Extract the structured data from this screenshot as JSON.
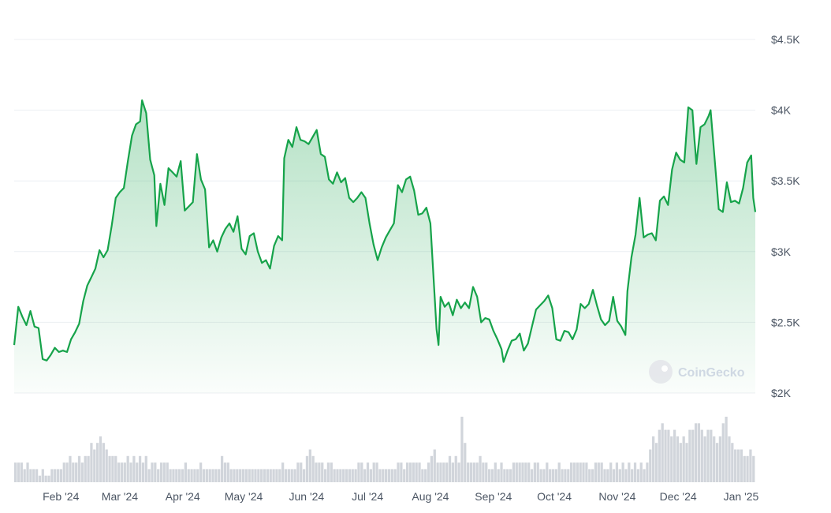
{
  "watermark": {
    "text": "CoinGecko",
    "icon": "gecko-logo-icon"
  },
  "colors": {
    "line": "#16a34a",
    "area_top": "#16a34a",
    "volume": "#d1d5db",
    "grid": "#eceff3",
    "label": "#4b5563"
  },
  "chart_data": {
    "type": "area",
    "title": "",
    "xlabel": "",
    "ylabel": "",
    "grid": true,
    "ylim": [
      2000,
      4500
    ],
    "yticks": [
      {
        "value": 4500,
        "label": "$4.5K"
      },
      {
        "value": 4000,
        "label": "$4K"
      },
      {
        "value": 3500,
        "label": "$3.5K"
      },
      {
        "value": 3000,
        "label": "$3K"
      },
      {
        "value": 2500,
        "label": "$2.5K"
      },
      {
        "value": 2000,
        "label": "$2K"
      }
    ],
    "xticks": [
      {
        "date": "2024-02-01",
        "label": "Feb '24"
      },
      {
        "date": "2024-03-01",
        "label": "Mar '24"
      },
      {
        "date": "2024-04-01",
        "label": "Apr '24"
      },
      {
        "date": "2024-05-01",
        "label": "May '24"
      },
      {
        "date": "2024-06-01",
        "label": "Jun '24"
      },
      {
        "date": "2024-07-01",
        "label": "Jul '24"
      },
      {
        "date": "2024-08-01",
        "label": "Aug '24"
      },
      {
        "date": "2024-09-01",
        "label": "Sep '24"
      },
      {
        "date": "2024-10-01",
        "label": "Oct '24"
      },
      {
        "date": "2024-11-01",
        "label": "Nov '24"
      },
      {
        "date": "2024-12-01",
        "label": "Dec '24"
      },
      {
        "date": "2025-01-01",
        "label": "Jan '25"
      }
    ],
    "series": [
      {
        "values": [
          {
            "x": "2024-01-09",
            "y": 2340
          },
          {
            "x": "2024-01-11",
            "y": 2610
          },
          {
            "x": "2024-01-13",
            "y": 2540
          },
          {
            "x": "2024-01-15",
            "y": 2480
          },
          {
            "x": "2024-01-17",
            "y": 2580
          },
          {
            "x": "2024-01-19",
            "y": 2470
          },
          {
            "x": "2024-01-21",
            "y": 2460
          },
          {
            "x": "2024-01-23",
            "y": 2240
          },
          {
            "x": "2024-01-25",
            "y": 2230
          },
          {
            "x": "2024-01-27",
            "y": 2270
          },
          {
            "x": "2024-01-29",
            "y": 2320
          },
          {
            "x": "2024-01-31",
            "y": 2290
          },
          {
            "x": "2024-02-02",
            "y": 2300
          },
          {
            "x": "2024-02-04",
            "y": 2290
          },
          {
            "x": "2024-02-06",
            "y": 2380
          },
          {
            "x": "2024-02-08",
            "y": 2430
          },
          {
            "x": "2024-02-10",
            "y": 2490
          },
          {
            "x": "2024-02-12",
            "y": 2650
          },
          {
            "x": "2024-02-14",
            "y": 2760
          },
          {
            "x": "2024-02-16",
            "y": 2820
          },
          {
            "x": "2024-02-18",
            "y": 2880
          },
          {
            "x": "2024-02-20",
            "y": 3010
          },
          {
            "x": "2024-02-22",
            "y": 2960
          },
          {
            "x": "2024-02-24",
            "y": 3010
          },
          {
            "x": "2024-02-26",
            "y": 3180
          },
          {
            "x": "2024-02-28",
            "y": 3380
          },
          {
            "x": "2024-03-01",
            "y": 3420
          },
          {
            "x": "2024-03-03",
            "y": 3450
          },
          {
            "x": "2024-03-05",
            "y": 3640
          },
          {
            "x": "2024-03-07",
            "y": 3820
          },
          {
            "x": "2024-03-09",
            "y": 3900
          },
          {
            "x": "2024-03-11",
            "y": 3920
          },
          {
            "x": "2024-03-12",
            "y": 4070
          },
          {
            "x": "2024-03-14",
            "y": 3980
          },
          {
            "x": "2024-03-16",
            "y": 3650
          },
          {
            "x": "2024-03-18",
            "y": 3540
          },
          {
            "x": "2024-03-19",
            "y": 3180
          },
          {
            "x": "2024-03-21",
            "y": 3480
          },
          {
            "x": "2024-03-23",
            "y": 3330
          },
          {
            "x": "2024-03-25",
            "y": 3590
          },
          {
            "x": "2024-03-27",
            "y": 3560
          },
          {
            "x": "2024-03-29",
            "y": 3530
          },
          {
            "x": "2024-03-31",
            "y": 3640
          },
          {
            "x": "2024-04-02",
            "y": 3290
          },
          {
            "x": "2024-04-04",
            "y": 3320
          },
          {
            "x": "2024-04-06",
            "y": 3350
          },
          {
            "x": "2024-04-08",
            "y": 3690
          },
          {
            "x": "2024-04-10",
            "y": 3510
          },
          {
            "x": "2024-04-12",
            "y": 3440
          },
          {
            "x": "2024-04-14",
            "y": 3030
          },
          {
            "x": "2024-04-16",
            "y": 3080
          },
          {
            "x": "2024-04-18",
            "y": 3000
          },
          {
            "x": "2024-04-20",
            "y": 3100
          },
          {
            "x": "2024-04-22",
            "y": 3160
          },
          {
            "x": "2024-04-24",
            "y": 3200
          },
          {
            "x": "2024-04-26",
            "y": 3140
          },
          {
            "x": "2024-04-28",
            "y": 3250
          },
          {
            "x": "2024-04-30",
            "y": 3020
          },
          {
            "x": "2024-05-02",
            "y": 2980
          },
          {
            "x": "2024-05-04",
            "y": 3110
          },
          {
            "x": "2024-05-06",
            "y": 3130
          },
          {
            "x": "2024-05-08",
            "y": 3000
          },
          {
            "x": "2024-05-10",
            "y": 2920
          },
          {
            "x": "2024-05-12",
            "y": 2940
          },
          {
            "x": "2024-05-14",
            "y": 2880
          },
          {
            "x": "2024-05-16",
            "y": 3040
          },
          {
            "x": "2024-05-18",
            "y": 3110
          },
          {
            "x": "2024-05-20",
            "y": 3080
          },
          {
            "x": "2024-05-21",
            "y": 3660
          },
          {
            "x": "2024-05-23",
            "y": 3790
          },
          {
            "x": "2024-05-25",
            "y": 3740
          },
          {
            "x": "2024-05-27",
            "y": 3880
          },
          {
            "x": "2024-05-29",
            "y": 3790
          },
          {
            "x": "2024-05-31",
            "y": 3780
          },
          {
            "x": "2024-06-02",
            "y": 3760
          },
          {
            "x": "2024-06-04",
            "y": 3810
          },
          {
            "x": "2024-06-06",
            "y": 3860
          },
          {
            "x": "2024-06-08",
            "y": 3690
          },
          {
            "x": "2024-06-10",
            "y": 3670
          },
          {
            "x": "2024-06-12",
            "y": 3510
          },
          {
            "x": "2024-06-14",
            "y": 3480
          },
          {
            "x": "2024-06-16",
            "y": 3560
          },
          {
            "x": "2024-06-18",
            "y": 3490
          },
          {
            "x": "2024-06-20",
            "y": 3520
          },
          {
            "x": "2024-06-22",
            "y": 3380
          },
          {
            "x": "2024-06-24",
            "y": 3350
          },
          {
            "x": "2024-06-26",
            "y": 3380
          },
          {
            "x": "2024-06-28",
            "y": 3420
          },
          {
            "x": "2024-06-30",
            "y": 3380
          },
          {
            "x": "2024-07-02",
            "y": 3200
          },
          {
            "x": "2024-07-04",
            "y": 3050
          },
          {
            "x": "2024-07-06",
            "y": 2940
          },
          {
            "x": "2024-07-08",
            "y": 3030
          },
          {
            "x": "2024-07-10",
            "y": 3100
          },
          {
            "x": "2024-07-12",
            "y": 3150
          },
          {
            "x": "2024-07-14",
            "y": 3200
          },
          {
            "x": "2024-07-16",
            "y": 3470
          },
          {
            "x": "2024-07-18",
            "y": 3420
          },
          {
            "x": "2024-07-20",
            "y": 3510
          },
          {
            "x": "2024-07-22",
            "y": 3530
          },
          {
            "x": "2024-07-24",
            "y": 3430
          },
          {
            "x": "2024-07-26",
            "y": 3260
          },
          {
            "x": "2024-07-28",
            "y": 3270
          },
          {
            "x": "2024-07-30",
            "y": 3310
          },
          {
            "x": "2024-08-01",
            "y": 3200
          },
          {
            "x": "2024-08-03",
            "y": 2700
          },
          {
            "x": "2024-08-04",
            "y": 2450
          },
          {
            "x": "2024-08-05",
            "y": 2340
          },
          {
            "x": "2024-08-06",
            "y": 2680
          },
          {
            "x": "2024-08-08",
            "y": 2610
          },
          {
            "x": "2024-08-10",
            "y": 2640
          },
          {
            "x": "2024-08-12",
            "y": 2550
          },
          {
            "x": "2024-08-14",
            "y": 2660
          },
          {
            "x": "2024-08-16",
            "y": 2600
          },
          {
            "x": "2024-08-18",
            "y": 2640
          },
          {
            "x": "2024-08-20",
            "y": 2600
          },
          {
            "x": "2024-08-22",
            "y": 2750
          },
          {
            "x": "2024-08-24",
            "y": 2680
          },
          {
            "x": "2024-08-26",
            "y": 2500
          },
          {
            "x": "2024-08-28",
            "y": 2530
          },
          {
            "x": "2024-08-30",
            "y": 2520
          },
          {
            "x": "2024-09-01",
            "y": 2440
          },
          {
            "x": "2024-09-03",
            "y": 2380
          },
          {
            "x": "2024-09-05",
            "y": 2310
          },
          {
            "x": "2024-09-06",
            "y": 2220
          },
          {
            "x": "2024-09-08",
            "y": 2300
          },
          {
            "x": "2024-09-10",
            "y": 2370
          },
          {
            "x": "2024-09-12",
            "y": 2380
          },
          {
            "x": "2024-09-14",
            "y": 2420
          },
          {
            "x": "2024-09-16",
            "y": 2300
          },
          {
            "x": "2024-09-18",
            "y": 2350
          },
          {
            "x": "2024-09-20",
            "y": 2470
          },
          {
            "x": "2024-09-22",
            "y": 2590
          },
          {
            "x": "2024-09-24",
            "y": 2620
          },
          {
            "x": "2024-09-26",
            "y": 2650
          },
          {
            "x": "2024-09-28",
            "y": 2690
          },
          {
            "x": "2024-09-30",
            "y": 2600
          },
          {
            "x": "2024-10-02",
            "y": 2380
          },
          {
            "x": "2024-10-04",
            "y": 2370
          },
          {
            "x": "2024-10-06",
            "y": 2440
          },
          {
            "x": "2024-10-08",
            "y": 2430
          },
          {
            "x": "2024-10-10",
            "y": 2380
          },
          {
            "x": "2024-10-12",
            "y": 2450
          },
          {
            "x": "2024-10-14",
            "y": 2630
          },
          {
            "x": "2024-10-16",
            "y": 2600
          },
          {
            "x": "2024-10-18",
            "y": 2630
          },
          {
            "x": "2024-10-20",
            "y": 2730
          },
          {
            "x": "2024-10-22",
            "y": 2620
          },
          {
            "x": "2024-10-24",
            "y": 2520
          },
          {
            "x": "2024-10-26",
            "y": 2480
          },
          {
            "x": "2024-10-28",
            "y": 2510
          },
          {
            "x": "2024-10-30",
            "y": 2680
          },
          {
            "x": "2024-11-01",
            "y": 2510
          },
          {
            "x": "2024-11-03",
            "y": 2470
          },
          {
            "x": "2024-11-05",
            "y": 2410
          },
          {
            "x": "2024-11-06",
            "y": 2720
          },
          {
            "x": "2024-11-08",
            "y": 2960
          },
          {
            "x": "2024-11-10",
            "y": 3120
          },
          {
            "x": "2024-11-12",
            "y": 3380
          },
          {
            "x": "2024-11-14",
            "y": 3100
          },
          {
            "x": "2024-11-16",
            "y": 3120
          },
          {
            "x": "2024-11-18",
            "y": 3130
          },
          {
            "x": "2024-11-20",
            "y": 3080
          },
          {
            "x": "2024-11-22",
            "y": 3360
          },
          {
            "x": "2024-11-24",
            "y": 3390
          },
          {
            "x": "2024-11-26",
            "y": 3330
          },
          {
            "x": "2024-11-28",
            "y": 3580
          },
          {
            "x": "2024-11-30",
            "y": 3700
          },
          {
            "x": "2024-12-02",
            "y": 3650
          },
          {
            "x": "2024-12-04",
            "y": 3630
          },
          {
            "x": "2024-12-06",
            "y": 4020
          },
          {
            "x": "2024-12-08",
            "y": 4000
          },
          {
            "x": "2024-12-09",
            "y": 3800
          },
          {
            "x": "2024-12-10",
            "y": 3620
          },
          {
            "x": "2024-12-12",
            "y": 3880
          },
          {
            "x": "2024-12-14",
            "y": 3900
          },
          {
            "x": "2024-12-16",
            "y": 3960
          },
          {
            "x": "2024-12-17",
            "y": 4000
          },
          {
            "x": "2024-12-19",
            "y": 3650
          },
          {
            "x": "2024-12-21",
            "y": 3300
          },
          {
            "x": "2024-12-23",
            "y": 3280
          },
          {
            "x": "2024-12-25",
            "y": 3490
          },
          {
            "x": "2024-12-27",
            "y": 3350
          },
          {
            "x": "2024-12-29",
            "y": 3360
          },
          {
            "x": "2024-12-31",
            "y": 3340
          },
          {
            "x": "2025-01-02",
            "y": 3450
          },
          {
            "x": "2025-01-04",
            "y": 3630
          },
          {
            "x": "2025-01-06",
            "y": 3680
          },
          {
            "x": "2025-01-07",
            "y": 3380
          },
          {
            "x": "2025-01-08",
            "y": 3280
          }
        ]
      }
    ],
    "volume": {
      "note_scale": "relative",
      "values": [
        3,
        3,
        3,
        2,
        3,
        2,
        2,
        2,
        1,
        2,
        1,
        1,
        2,
        2,
        2,
        2,
        3,
        3,
        4,
        3,
        3,
        4,
        3,
        4,
        4,
        6,
        5,
        6,
        7,
        6,
        5,
        4,
        4,
        4,
        3,
        3,
        3,
        4,
        3,
        4,
        3,
        4,
        3,
        4,
        2,
        3,
        3,
        2,
        3,
        3,
        3,
        2,
        2,
        2,
        2,
        2,
        3,
        2,
        2,
        2,
        2,
        3,
        2,
        2,
        2,
        2,
        2,
        2,
        4,
        3,
        3,
        2,
        2,
        2,
        2,
        2,
        2,
        2,
        2,
        2,
        2,
        2,
        2,
        2,
        2,
        2,
        2,
        2,
        3,
        2,
        2,
        2,
        2,
        3,
        3,
        2,
        4,
        5,
        4,
        3,
        3,
        3,
        2,
        3,
        3,
        2,
        2,
        2,
        2,
        2,
        2,
        2,
        2,
        3,
        3,
        2,
        3,
        2,
        3,
        3,
        2,
        2,
        2,
        2,
        2,
        2,
        3,
        3,
        2,
        3,
        3,
        3,
        3,
        3,
        2,
        2,
        3,
        4,
        5,
        3,
        3,
        3,
        3,
        4,
        3,
        4,
        3,
        10,
        6,
        3,
        3,
        3,
        3,
        4,
        3,
        3,
        2,
        2,
        3,
        2,
        3,
        2,
        2,
        2,
        3,
        3,
        3,
        3,
        3,
        3,
        2,
        3,
        3,
        2,
        2,
        3,
        2,
        2,
        2,
        3,
        2,
        2,
        2,
        3,
        3,
        3,
        3,
        3,
        3,
        2,
        2,
        3,
        3,
        3,
        2,
        2,
        3,
        2,
        3,
        2,
        3,
        2,
        3,
        2,
        3,
        2,
        3,
        2,
        3,
        5,
        7,
        6,
        8,
        9,
        8,
        8,
        7,
        8,
        7,
        6,
        7,
        6,
        8,
        8,
        9,
        9,
        8,
        7,
        8,
        8,
        7,
        6,
        7,
        9,
        10,
        7,
        6,
        5,
        5,
        5,
        4,
        4,
        5,
        4
      ]
    }
  }
}
